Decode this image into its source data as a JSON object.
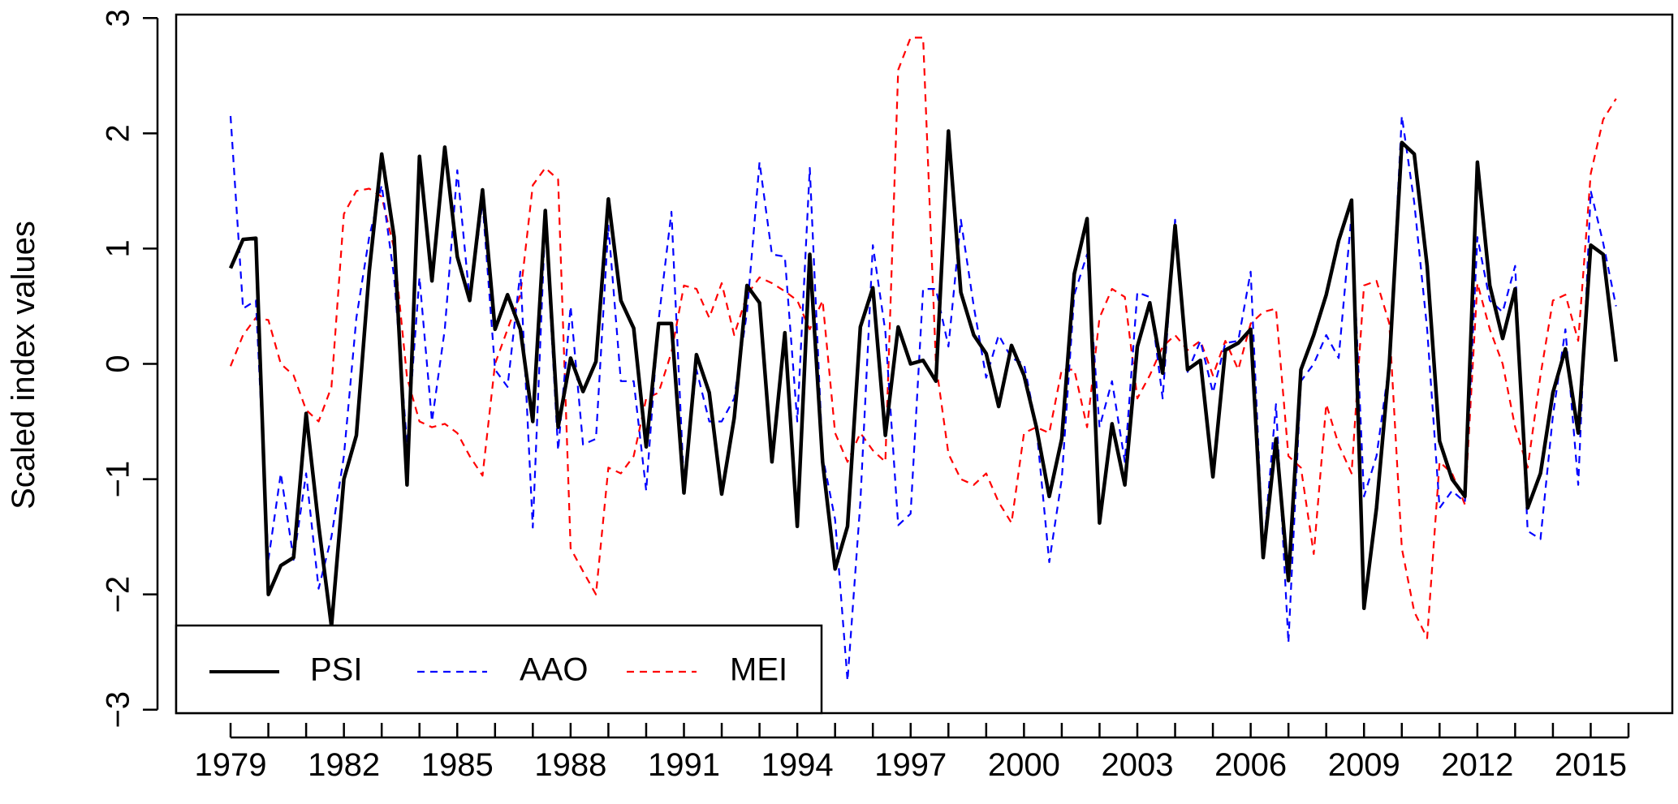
{
  "chart_data": {
    "type": "line",
    "y_label": "Scaled index values",
    "x": [
      1979,
      1979.33,
      1979.67,
      1980,
      1980.33,
      1980.67,
      1981,
      1981.33,
      1981.67,
      1982,
      1982.33,
      1982.67,
      1983,
      1983.33,
      1983.67,
      1984,
      1984.33,
      1984.67,
      1985,
      1985.33,
      1985.67,
      1986,
      1986.33,
      1986.67,
      1987,
      1987.33,
      1987.67,
      1988,
      1988.33,
      1988.67,
      1989,
      1989.33,
      1989.67,
      1990,
      1990.33,
      1990.67,
      1991,
      1991.33,
      1991.67,
      1992,
      1992.33,
      1992.67,
      1993,
      1993.33,
      1993.67,
      1994,
      1994.33,
      1994.67,
      1995,
      1995.33,
      1995.67,
      1996,
      1996.33,
      1996.67,
      1997,
      1997.33,
      1997.67,
      1998,
      1998.33,
      1998.67,
      1999,
      1999.33,
      1999.67,
      2000,
      2000.33,
      2000.67,
      2001,
      2001.33,
      2001.67,
      2002,
      2002.33,
      2002.67,
      2003,
      2003.33,
      2003.67,
      2004,
      2004.33,
      2004.67,
      2005,
      2005.33,
      2005.67,
      2006,
      2006.33,
      2006.67,
      2007,
      2007.33,
      2007.67,
      2008,
      2008.33,
      2008.67,
      2009,
      2009.33,
      2009.67,
      2010,
      2010.33,
      2010.67,
      2011,
      2011.33,
      2011.67,
      2012,
      2012.33,
      2012.67,
      2013,
      2013.33,
      2013.67,
      2014,
      2014.33,
      2014.67,
      2015,
      2015.33,
      2015.67
    ],
    "series": [
      {
        "name": "PSI",
        "color": "#000000",
        "style": "solid",
        "values": [
          0.83,
          1.08,
          1.09,
          -2.0,
          -1.75,
          -1.68,
          -0.43,
          -1.4,
          -2.28,
          -1.0,
          -0.62,
          0.8,
          1.82,
          1.1,
          -1.05,
          1.8,
          0.72,
          1.88,
          0.93,
          0.55,
          1.51,
          0.3,
          0.6,
          0.3,
          -0.5,
          1.33,
          -0.55,
          0.05,
          -0.24,
          0.02,
          1.43,
          0.55,
          0.31,
          -0.72,
          0.35,
          0.35,
          -1.12,
          0.08,
          -0.25,
          -1.13,
          -0.47,
          0.68,
          0.53,
          -0.85,
          0.27,
          -1.41,
          0.95,
          -0.85,
          -1.78,
          -1.41,
          0.32,
          0.66,
          -0.62,
          0.32,
          0.0,
          0.03,
          -0.15,
          2.02,
          0.62,
          0.25,
          0.09,
          -0.37,
          0.16,
          -0.1,
          -0.55,
          -1.15,
          -0.65,
          0.78,
          1.26,
          -1.38,
          -0.52,
          -1.05,
          0.15,
          0.53,
          -0.08,
          1.2,
          -0.05,
          0.03,
          -0.98,
          0.12,
          0.18,
          0.3,
          -1.68,
          -0.65,
          -1.88,
          -0.05,
          0.25,
          0.6,
          1.07,
          1.42,
          -2.12,
          -1.25,
          0.0,
          1.92,
          1.82,
          0.85,
          -0.67,
          -1.0,
          -1.15,
          1.75,
          0.68,
          0.22,
          0.65,
          -1.25,
          -0.95,
          -0.25,
          0.13,
          -0.6,
          1.03,
          0.95,
          0.02
        ]
      },
      {
        "name": "AAO",
        "color": "#0000ff",
        "style": "dashed",
        "values": [
          2.15,
          0.48,
          0.55,
          -1.7,
          -0.95,
          -1.7,
          -0.95,
          -1.95,
          -1.5,
          -0.8,
          0.4,
          1.1,
          1.55,
          0.75,
          -0.7,
          0.75,
          -0.5,
          0.3,
          1.68,
          0.55,
          1.4,
          -0.05,
          -0.2,
          0.8,
          -1.42,
          1.25,
          -0.75,
          0.5,
          -0.7,
          -0.65,
          1.2,
          -0.15,
          -0.15,
          -1.1,
          0.38,
          1.32,
          -1.05,
          -0.05,
          -0.5,
          -0.5,
          -0.3,
          0.45,
          1.75,
          0.95,
          0.93,
          -0.5,
          1.7,
          -0.8,
          -1.35,
          -2.75,
          -1.2,
          1.03,
          0.28,
          -1.4,
          -1.3,
          0.65,
          0.65,
          0.15,
          1.25,
          0.5,
          -0.12,
          0.25,
          0.05,
          0.0,
          -0.55,
          -1.72,
          -1.0,
          0.6,
          0.95,
          -0.55,
          -0.15,
          -0.85,
          0.62,
          0.58,
          -0.3,
          1.25,
          -0.07,
          0.2,
          -0.25,
          0.18,
          0.2,
          0.8,
          -1.65,
          -0.35,
          -2.42,
          -0.15,
          0.0,
          0.25,
          0.05,
          1.3,
          -1.15,
          -0.8,
          0.0,
          2.15,
          1.4,
          0.3,
          -1.25,
          -1.1,
          -1.2,
          1.1,
          0.55,
          0.45,
          0.85,
          -1.45,
          -1.52,
          -0.45,
          0.3,
          -1.05,
          1.5,
          1.05,
          0.5
        ]
      },
      {
        "name": "MEI",
        "color": "#ff0000",
        "style": "dashed",
        "values": [
          -0.02,
          0.25,
          0.4,
          0.38,
          0.0,
          -0.1,
          -0.4,
          -0.5,
          -0.2,
          1.3,
          1.5,
          1.52,
          1.45,
          1.0,
          -0.12,
          -0.5,
          -0.55,
          -0.52,
          -0.6,
          -0.8,
          -0.97,
          0.0,
          0.3,
          0.6,
          1.55,
          1.7,
          1.6,
          -1.6,
          -1.8,
          -2.0,
          -0.9,
          -0.95,
          -0.8,
          -0.3,
          -0.25,
          0.1,
          0.68,
          0.65,
          0.4,
          0.7,
          0.25,
          0.6,
          0.75,
          0.7,
          0.63,
          0.55,
          0.3,
          0.55,
          -0.6,
          -0.85,
          -0.6,
          -0.75,
          -0.85,
          2.55,
          2.83,
          2.83,
          0.0,
          -0.78,
          -1.0,
          -1.05,
          -0.95,
          -1.2,
          -1.38,
          -0.6,
          -0.55,
          -0.6,
          -0.05,
          -0.05,
          -0.55,
          0.4,
          0.65,
          0.58,
          -0.3,
          -0.1,
          0.15,
          0.25,
          0.12,
          0.2,
          -0.1,
          0.2,
          -0.05,
          0.35,
          0.45,
          0.48,
          -0.8,
          -0.9,
          -1.65,
          -0.35,
          -0.7,
          -0.95,
          0.68,
          0.72,
          0.35,
          -1.6,
          -2.15,
          -2.38,
          -0.85,
          -0.95,
          -1.22,
          0.7,
          0.3,
          0.0,
          -0.55,
          -0.9,
          -0.1,
          0.55,
          0.6,
          0.2,
          1.65,
          2.12,
          2.3
        ]
      }
    ],
    "xlim": [
      1977.56,
      2017.16
    ],
    "ylim": [
      -3.03,
      3.03
    ],
    "xticks": [
      1979,
      1982,
      1985,
      1988,
      1991,
      1994,
      1997,
      2000,
      2003,
      2006,
      2009,
      2012,
      2015
    ],
    "xminor_ticks": [
      1979,
      1980,
      1981,
      1982,
      1983,
      1984,
      1985,
      1986,
      1987,
      1988,
      1989,
      1990,
      1991,
      1992,
      1993,
      1994,
      1995,
      1996,
      1997,
      1998,
      1999,
      2000,
      2001,
      2002,
      2003,
      2004,
      2005,
      2006,
      2007,
      2008,
      2009,
      2010,
      2011,
      2012,
      2013,
      2014,
      2015,
      2016
    ],
    "yticks": [
      {
        "value": -3,
        "label": "−3"
      },
      {
        "value": -2,
        "label": "−2"
      },
      {
        "value": -1,
        "label": "−1"
      },
      0,
      1,
      2,
      3
    ],
    "grid": false,
    "legend": "bottom-left"
  }
}
